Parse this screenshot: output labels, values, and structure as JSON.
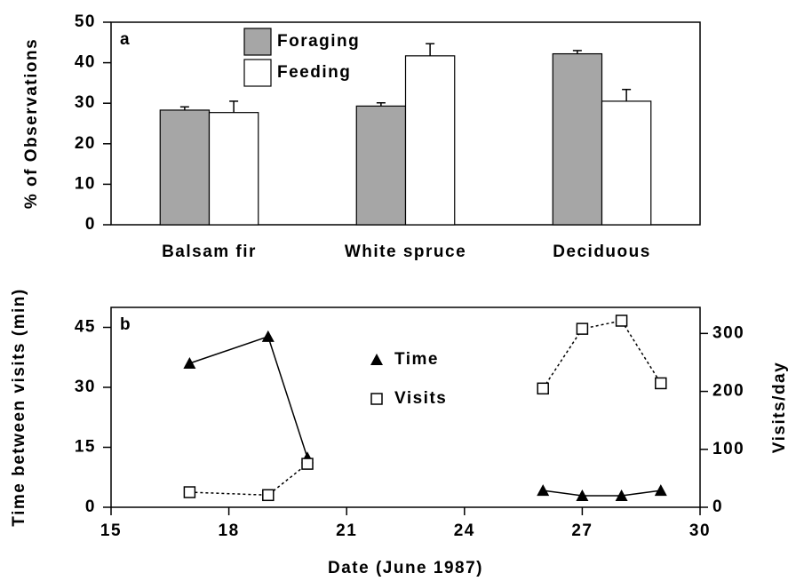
{
  "chart_data": [
    {
      "type": "bar",
      "panel_label": "a",
      "ylabel": "% of Observations",
      "categories": [
        "Balsam fir",
        "White spruce",
        "Deciduous"
      ],
      "series": [
        {
          "name": "Foraging",
          "color": "#a6a6a6",
          "values": [
            28.3,
            29.3,
            42.2
          ],
          "errors": [
            0.8,
            0.8,
            0.8
          ]
        },
        {
          "name": "Feeding",
          "color": "#ffffff",
          "values": [
            27.7,
            41.7,
            30.5
          ],
          "errors": [
            2.8,
            3.0,
            2.9
          ]
        }
      ],
      "ylim": [
        0,
        50
      ],
      "yticks": [
        0,
        10,
        20,
        30,
        40,
        50
      ]
    },
    {
      "type": "line",
      "panel_label": "b",
      "ylabel": "Time between visits (min)",
      "y2label": "Visits/day",
      "xlabel": "Date (June 1987)",
      "series": [
        {
          "name": "Time",
          "color": "#000000",
          "marker": "triangle",
          "dashed": false,
          "axis": "y",
          "x": [
            17,
            19,
            20,
            null,
            26,
            27,
            28,
            29
          ],
          "values": [
            36,
            42.7,
            12.4,
            null,
            4.2,
            2.9,
            2.9,
            4.2
          ]
        },
        {
          "name": "Visits",
          "color": "#000000",
          "marker": "square",
          "dashed": true,
          "axis": "y2",
          "x": [
            17,
            19,
            20,
            null,
            26,
            27,
            28,
            29
          ],
          "values": [
            26,
            21,
            75,
            null,
            205,
            308,
            322,
            214
          ]
        }
      ],
      "xlim": [
        15,
        30
      ],
      "xticks": [
        15,
        18,
        21,
        24,
        27,
        30
      ],
      "ylim": [
        0,
        50
      ],
      "yticks": [
        0,
        15,
        30,
        45
      ],
      "y2lim": [
        0,
        345
      ],
      "y2ticks": [
        0,
        100,
        200,
        300
      ]
    }
  ]
}
